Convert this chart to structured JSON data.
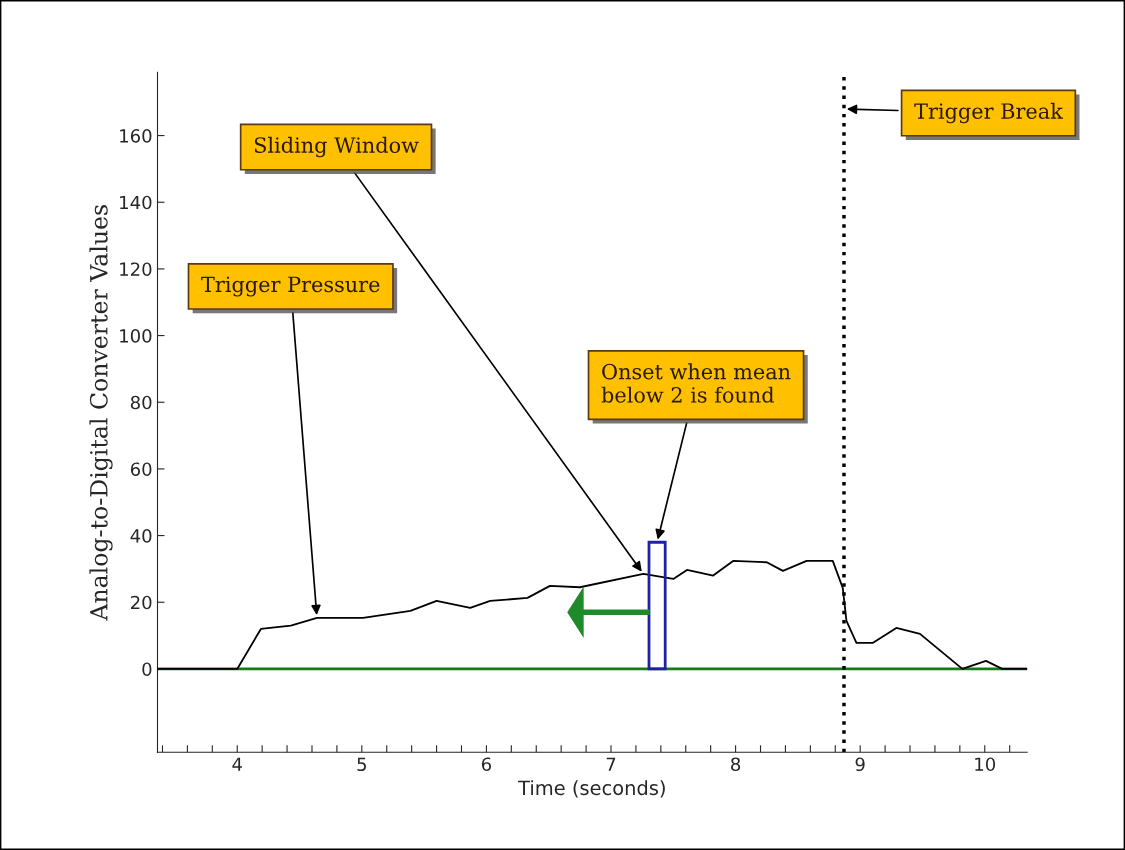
{
  "chart_data": {
    "type": "line",
    "xlabel": "Time (seconds)",
    "ylabel": "Analog-to-Digital Converter Values",
    "series": [
      {
        "color": "#000000",
        "x": [
          3.36,
          4.0,
          4.19,
          4.43,
          4.64,
          5.01,
          5.39,
          5.6,
          5.87,
          6.03,
          6.33,
          6.51,
          6.75,
          7.26,
          7.5,
          7.61,
          7.82,
          7.98,
          8.25,
          8.38,
          8.57,
          8.78,
          8.86,
          8.89,
          8.97,
          9.1,
          9.29,
          9.48,
          9.82,
          10.01,
          10.14,
          10.34
        ],
        "values": [
          0,
          0,
          12,
          13,
          15.3,
          15.3,
          17.4,
          20.4,
          18.3,
          20.4,
          21.3,
          24.9,
          24.5,
          28.5,
          27,
          29.7,
          28,
          32.4,
          32,
          29.4,
          32.4,
          32.4,
          24.3,
          14.4,
          7.8,
          7.8,
          12.3,
          10.5,
          0,
          2.4,
          0,
          0
        ]
      },
      {
        "type": "bar",
        "color": "#2020a0",
        "x": [
          7.37
        ],
        "values": [
          38
        ]
      }
    ],
    "xlim": [
      3.36,
      10.34
    ],
    "ylim": [
      -25,
      179
    ],
    "xticks": [
      {
        "value": 3.4,
        "label": null
      },
      {
        "value": 3.6,
        "label": null
      },
      {
        "value": 3.8,
        "label": null
      },
      4,
      {
        "value": 4.2,
        "label": null
      },
      {
        "value": 4.4,
        "label": null
      },
      {
        "value": 4.6,
        "label": null
      },
      {
        "value": 4.8,
        "label": null
      },
      5,
      {
        "value": 5.2,
        "label": null
      },
      {
        "value": 5.4,
        "label": null
      },
      {
        "value": 5.6,
        "label": null
      },
      {
        "value": 5.8,
        "label": null
      },
      6,
      {
        "value": 6.2,
        "label": null
      },
      {
        "value": 6.4,
        "label": null
      },
      {
        "value": 6.6,
        "label": null
      },
      {
        "value": 6.8,
        "label": null
      },
      7,
      {
        "value": 7.2,
        "label": null
      },
      {
        "value": 7.4,
        "label": null
      },
      {
        "value": 7.6,
        "label": null
      },
      {
        "value": 7.8,
        "label": null
      },
      8,
      {
        "value": 8.2,
        "label": null
      },
      {
        "value": 8.4,
        "label": null
      },
      {
        "value": 8.6,
        "label": null
      },
      {
        "value": 8.8,
        "label": null
      },
      9,
      {
        "value": 9.2,
        "label": null
      },
      {
        "value": 9.4,
        "label": null
      },
      {
        "value": 9.6,
        "label": null
      },
      {
        "value": 9.8,
        "label": null
      },
      10,
      {
        "value": 10.2,
        "label": null
      }
    ],
    "yticks": [
      0,
      20,
      40,
      60,
      80,
      100,
      120,
      140,
      160
    ],
    "ref_lines": [
      {
        "axis": "y",
        "value": 0,
        "color": "#1a7a1a",
        "line_style": "solid"
      },
      {
        "axis": "x",
        "value": 8.87,
        "label": "Trigger Break",
        "color": "#000000",
        "line_style": "dotted"
      }
    ],
    "annotations": [
      {
        "text": "Trigger Pressure",
        "x": 4.64,
        "y": 15.3
      },
      {
        "text": "Sliding Window",
        "x": 7.26,
        "y": 28.5
      },
      {
        "text": "Onset when mean\nbelow 2 is found",
        "x": 7.37,
        "y": 38
      }
    ],
    "grid": false,
    "legend": false,
    "marker": "none",
    "line_style": "solid"
  }
}
